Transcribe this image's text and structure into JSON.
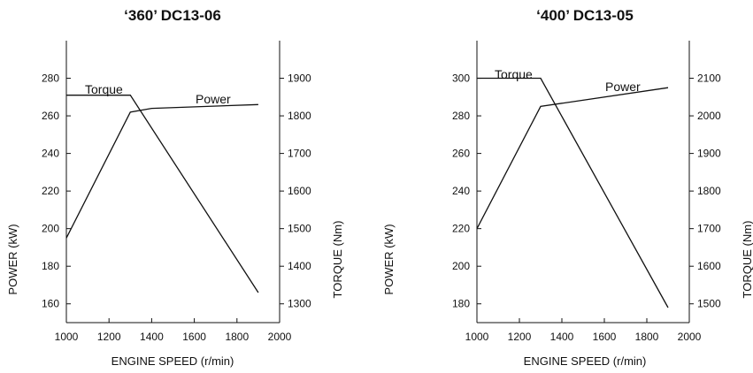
{
  "chart_data": [
    {
      "type": "line",
      "title": "‘360’ DC13-06",
      "xlabel": "ENGINE SPEED (r/min)",
      "ylabel_left": "POWER (kW)",
      "ylabel_right": "TORQUE (Nm)",
      "xlim": [
        1000,
        2000
      ],
      "ylim_left": [
        150,
        300
      ],
      "ylim_right": [
        1250,
        2000
      ],
      "x_ticks": [
        1000,
        1200,
        1400,
        1600,
        1800,
        2000
      ],
      "y_left_ticks": [
        160,
        180,
        200,
        220,
        240,
        260,
        280
      ],
      "y_right_ticks": [
        1300,
        1400,
        1500,
        1600,
        1700,
        1800,
        1900
      ],
      "grid": false,
      "series": [
        {
          "name": "Power",
          "axis": "left",
          "x": [
            1000,
            1300,
            1400,
            1900
          ],
          "y": [
            195,
            262,
            264,
            266
          ]
        },
        {
          "name": "Torque",
          "axis": "right",
          "x": [
            1000,
            1300,
            1900
          ],
          "y": [
            1855,
            1855,
            1330
          ]
        }
      ]
    },
    {
      "type": "line",
      "title": "‘400’ DC13-05",
      "xlabel": "ENGINE SPEED (r/min)",
      "ylabel_left": "POWER (kW)",
      "ylabel_right": "TORQUE (Nm)",
      "xlim": [
        1000,
        2000
      ],
      "ylim_left": [
        170,
        320
      ],
      "ylim_right": [
        1450,
        2200
      ],
      "x_ticks": [
        1000,
        1200,
        1400,
        1600,
        1800,
        2000
      ],
      "y_left_ticks": [
        180,
        200,
        220,
        240,
        260,
        280,
        300
      ],
      "y_right_ticks": [
        1500,
        1600,
        1700,
        1800,
        1900,
        2000,
        2100
      ],
      "grid": false,
      "series": [
        {
          "name": "Power",
          "axis": "left",
          "x": [
            1000,
            1300,
            1900
          ],
          "y": [
            220,
            285,
            295
          ]
        },
        {
          "name": "Torque",
          "axis": "right",
          "x": [
            1000,
            1300,
            1900
          ],
          "y": [
            2100,
            2100,
            1490
          ]
        }
      ]
    }
  ]
}
